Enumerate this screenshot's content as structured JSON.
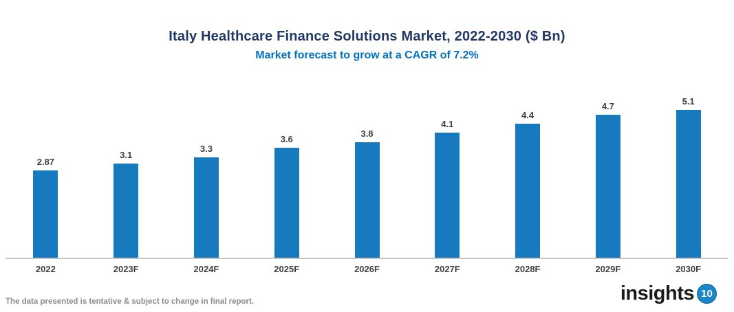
{
  "header": {
    "title": "Italy Healthcare Finance Solutions Market, 2022-2030 ($ Bn)",
    "subtitle": "Market forecast to grow at a CAGR of 7.2%"
  },
  "chart_data": {
    "type": "bar",
    "title": "Italy Healthcare Finance Solutions Market, 2022-2030 ($ Bn)",
    "subtitle": "Market forecast to grow at a CAGR of 7.2%",
    "categories": [
      "2022",
      "2023F",
      "2024F",
      "2025F",
      "2026F",
      "2027F",
      "2028F",
      "2029F",
      "2030F"
    ],
    "values": [
      2.87,
      3.1,
      3.3,
      3.6,
      3.8,
      4.1,
      4.4,
      4.7,
      5.1
    ],
    "data_labels": [
      "2.87",
      "3.1",
      "3.3",
      "3.6",
      "3.8",
      "4.1",
      "4.4",
      "4.7",
      "5.1"
    ],
    "xlabel": "",
    "ylabel": "",
    "ylim": [
      0,
      5.5
    ],
    "grid": false,
    "legend": false,
    "y_axis_visible": false,
    "bar_color": "#1779BE"
  },
  "footer": {
    "disclaimer": "The data presented is tentative & subject to change in final report.",
    "logo_text": "insights",
    "logo_badge": "10"
  },
  "colors": {
    "title": "#1F3864",
    "subtitle": "#0070C0",
    "bar": "#1779BE",
    "label": "#404040",
    "axis": "#C6C6C6",
    "disclaimer": "#8C8C8C",
    "logo_badge_bg": "#1B86C8",
    "logo_text": "#1A1A1A"
  }
}
